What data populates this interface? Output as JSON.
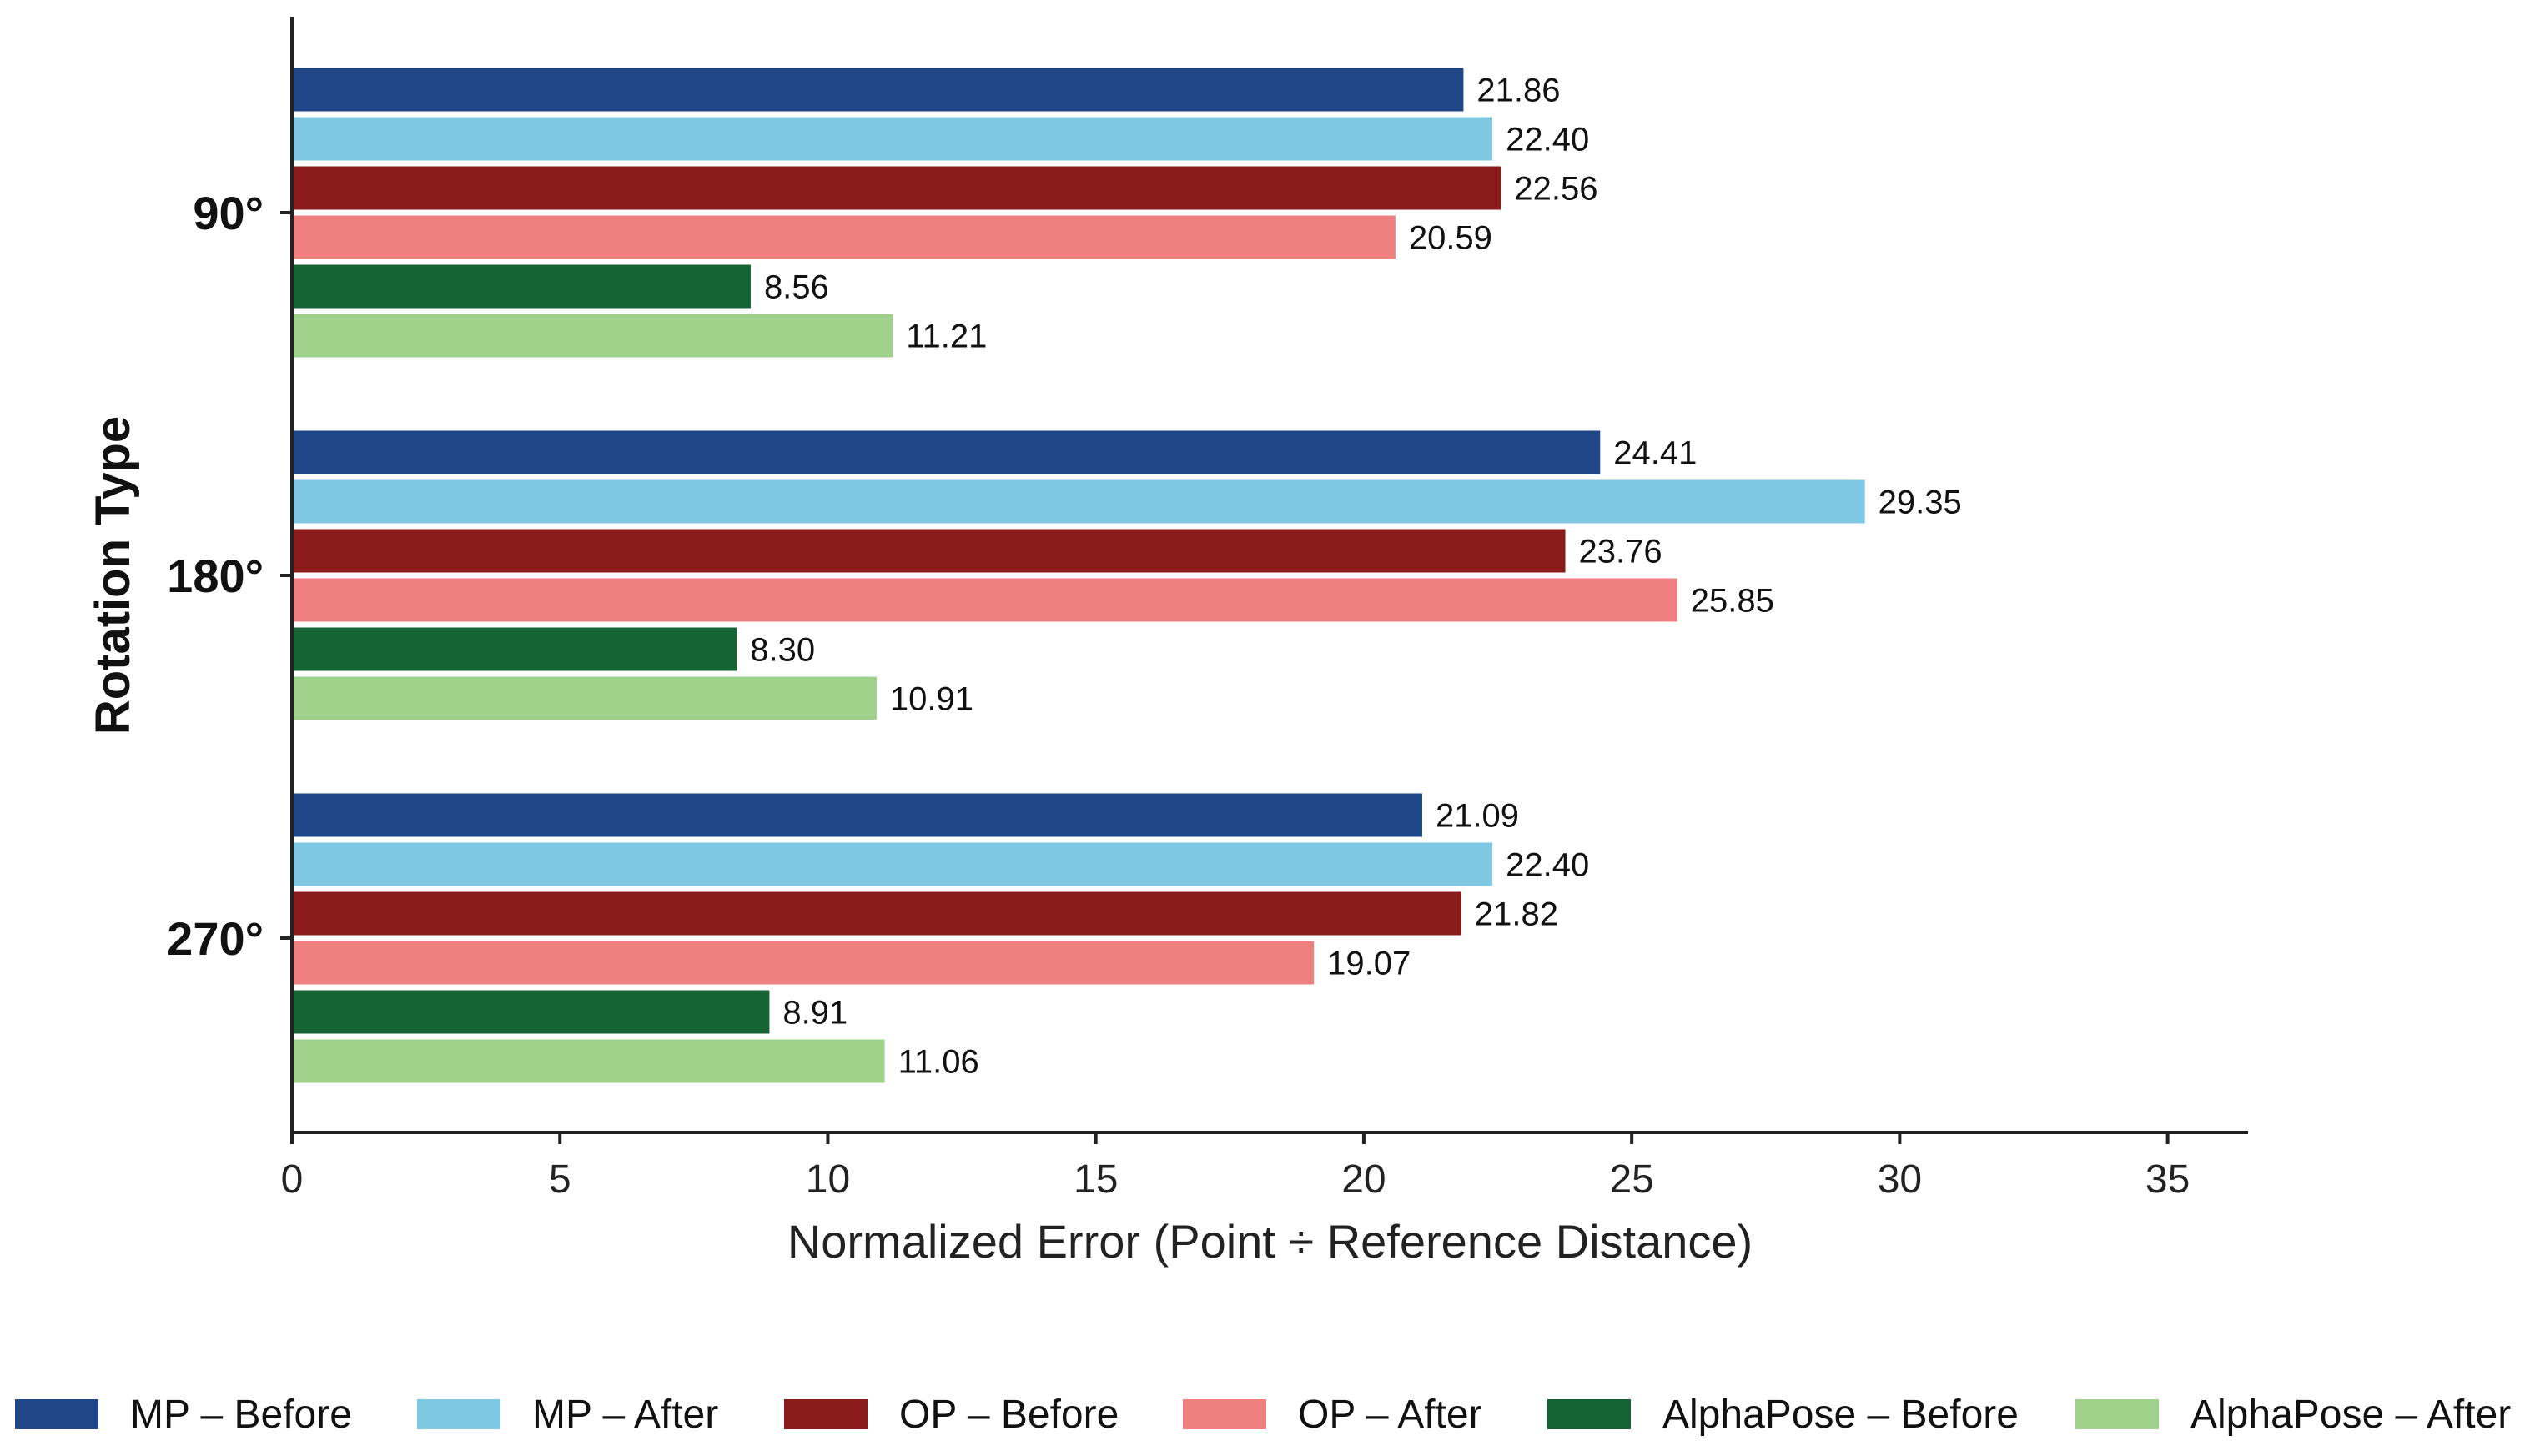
{
  "chart_data": {
    "type": "bar",
    "orientation": "horizontal",
    "title": "",
    "xlabel": "Normalized Error (Point ÷ Reference Distance)",
    "ylabel": "Rotation Type",
    "xlim": [
      0,
      36.5
    ],
    "xticks": [
      0,
      5,
      10,
      15,
      20,
      25,
      30,
      35
    ],
    "grid": false,
    "legend_position": "bottom",
    "categories": [
      "90°",
      "180°",
      "270°"
    ],
    "series": [
      {
        "name": "MP – Before",
        "color": "#1f4788",
        "values": [
          21.86,
          24.41,
          21.09
        ],
        "labels": [
          "21.86",
          "24.41",
          "21.09"
        ]
      },
      {
        "name": "MP – After",
        "color": "#7ec8e3",
        "values": [
          22.4,
          29.35,
          22.4
        ],
        "labels": [
          "22.40",
          "29.35",
          "22.40"
        ]
      },
      {
        "name": "OP – Before",
        "color": "#8b1a1a",
        "values": [
          22.56,
          23.76,
          21.82
        ],
        "labels": [
          "22.56",
          "23.76",
          "21.82"
        ]
      },
      {
        "name": "OP – After",
        "color": "#f08080",
        "values": [
          20.59,
          25.85,
          19.07
        ],
        "labels": [
          "20.59",
          "25.85",
          "19.07"
        ]
      },
      {
        "name": "AlphaPose – Before",
        "color": "#156534",
        "values": [
          8.56,
          8.3,
          8.91
        ],
        "labels": [
          "8.56",
          "8.30",
          "8.91"
        ]
      },
      {
        "name": "AlphaPose – After",
        "color": "#9fd18b",
        "values": [
          11.21,
          10.91,
          11.06
        ],
        "labels": [
          "11.21",
          "10.91",
          "11.06"
        ]
      }
    ]
  }
}
